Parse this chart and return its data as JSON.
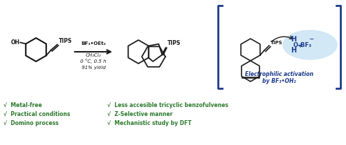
{
  "background_color": "#ffffff",
  "border_color": "#1a3a8c",
  "green_color": "#2d7a2d",
  "blue_color": "#1a3a8c",
  "light_blue_bg": "#cce4f5",
  "black": "#1a1a1a",
  "bullet_items_left": [
    "√  Metal-free",
    "√  Practical conditions",
    "√  Domino process"
  ],
  "bullet_items_right": [
    "√  Less accesible tricyclic benzofulvenes",
    "√  Z-Selective manner",
    "√  Mechanistic study by DFT"
  ],
  "reaction_conditions_line1": "BF₃•OEt₂",
  "reaction_conditions_line2": "CH₂Cl₂",
  "reaction_conditions_line3": "0 °C, 0.5 h",
  "reaction_conditions_line4": "91% yield",
  "electrophilic_text1": "Electrophilic activation",
  "electrophilic_text2": "by BF₃•OH₂",
  "tips_label": "TIPS",
  "h_obf3_H1": "H",
  "h_obf3_plus": "+",
  "h_obf3_minus": "−",
  "h_obf3_OBF3": "O–BF₃",
  "h_obf3_H2": "H"
}
